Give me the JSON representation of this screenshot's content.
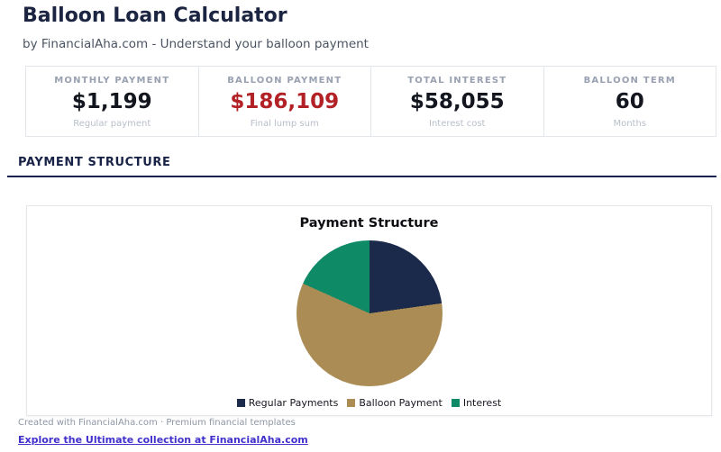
{
  "header": {
    "title": "Balloon Loan Calculator",
    "subtitle": "by FinancialAha.com - Understand your balloon payment"
  },
  "stats": [
    {
      "label": "MONTHLY PAYMENT",
      "value": "$1,199",
      "sublabel": "Regular payment",
      "value_color": "#13161f"
    },
    {
      "label": "BALLOON PAYMENT",
      "value": "$186,109",
      "sublabel": "Final lump sum",
      "value_color": "#b22126"
    },
    {
      "label": "TOTAL INTEREST",
      "value": "$58,055",
      "sublabel": "Interest cost",
      "value_color": "#13161f"
    },
    {
      "label": "BALLOON TERM",
      "value": "60",
      "sublabel": "Months",
      "value_color": "#13161f"
    }
  ],
  "section": {
    "heading": "PAYMENT STRUCTURE"
  },
  "chart_data": {
    "type": "pie",
    "title": "Payment Structure",
    "legend_position": "bottom",
    "start_angle_deg": 0,
    "slices": [
      {
        "label": "Regular Payments",
        "percent": 22.8,
        "color": "#1b2a4a"
      },
      {
        "label": "Balloon Payment",
        "percent": 58.9,
        "color": "#ab8c55"
      },
      {
        "label": "Interest",
        "percent": 18.3,
        "color": "#0e8a66"
      }
    ]
  },
  "footer": {
    "credit": "Created with FinancialAha.com · Premium financial templates",
    "link": "Explore the Ultimate collection at FinancialAha.com"
  },
  "colors": {
    "title_navy": "#1b2440",
    "accent_rule": "#1a2450",
    "alert_red": "#b22126",
    "card_border": "#e2e5ea",
    "link_purple": "#4130cc"
  }
}
